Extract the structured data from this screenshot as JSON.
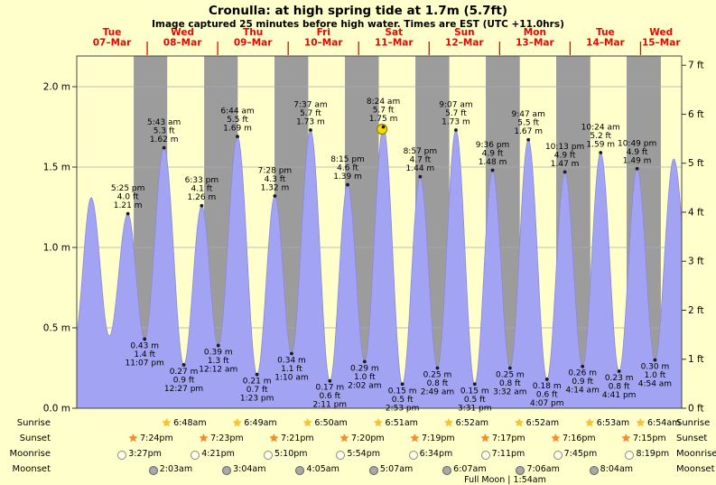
{
  "title": "Cronulla: at high  spring tide at 1.7m (5.7ft)",
  "subtitle": "Image captured 25 minutes before high water. Times are EST (UTC +11.0hrs)",
  "colors": {
    "page_bg": "#ffffcc",
    "day_band": "#ffffcc",
    "night_band": "#9c9c9c",
    "tide_fill": "#a3a3f3",
    "tide_stroke": "#8a8ad8",
    "day_label": "#f20000",
    "grid": "#ababab",
    "marker_fill": "#ffd700",
    "marker_stroke": "#8a8a00"
  },
  "chart_data": {
    "type": "area",
    "unit_left": "m",
    "unit_right": "ft",
    "ylim_m": [
      0,
      2.19
    ],
    "y_ticks_m": [
      "0.0 m",
      "0.5 m",
      "1.0 m",
      "1.5 m",
      "2.0 m"
    ],
    "y_ticks_ft": [
      "0 ft",
      "1 ft",
      "2 ft",
      "3 ft",
      "4 ft",
      "5 ft",
      "6 ft",
      "7 ft"
    ],
    "days": [
      {
        "weekday": "Tue",
        "date": "07–Mar"
      },
      {
        "weekday": "Wed",
        "date": "08–Mar"
      },
      {
        "weekday": "Thu",
        "date": "09–Mar"
      },
      {
        "weekday": "Fri",
        "date": "10–Mar"
      },
      {
        "weekday": "Sat",
        "date": "11–Mar"
      },
      {
        "weekday": "Sun",
        "date": "12–Mar"
      },
      {
        "weekday": "Mon",
        "date": "13–Mar"
      },
      {
        "weekday": "Tue",
        "date": "14–Mar"
      },
      {
        "weekday": "Wed",
        "date": "15–Mar"
      }
    ],
    "tides": [
      {
        "type": "high",
        "day": 0,
        "time": "5:25 pm",
        "ft": "4.0 ft",
        "m": "1.21 m",
        "height_m": 1.21
      },
      {
        "type": "low",
        "day": 0,
        "time": "11:07 pm",
        "ft": "1.4 ft",
        "m": "0.43 m",
        "height_m": 0.43
      },
      {
        "type": "high",
        "day": 1,
        "time": "5:43 am",
        "ft": "5.3 ft",
        "m": "1.62 m",
        "height_m": 1.62
      },
      {
        "type": "low",
        "day": 1,
        "time": "12:27 pm",
        "ft": "0.9 ft",
        "m": "0.27 m",
        "height_m": 0.27
      },
      {
        "type": "high",
        "day": 1,
        "time": "6:33 pm",
        "ft": "4.1 ft",
        "m": "1.26 m",
        "height_m": 1.26
      },
      {
        "type": "low",
        "day": 2,
        "time": "12:12 am",
        "ft": "1.3 ft",
        "m": "0.39 m",
        "height_m": 0.39
      },
      {
        "type": "high",
        "day": 2,
        "time": "6:44 am",
        "ft": "5.5 ft",
        "m": "1.69 m",
        "height_m": 1.69
      },
      {
        "type": "low",
        "day": 2,
        "time": "1:23 pm",
        "ft": "0.7 ft",
        "m": "0.21 m",
        "height_m": 0.21
      },
      {
        "type": "high",
        "day": 2,
        "time": "7:28 pm",
        "ft": "4.3 ft",
        "m": "1.32 m",
        "height_m": 1.32
      },
      {
        "type": "low",
        "day": 3,
        "time": "1:10 am",
        "ft": "1.1 ft",
        "m": "0.34 m",
        "height_m": 0.34
      },
      {
        "type": "high",
        "day": 3,
        "time": "7:37 am",
        "ft": "5.7 ft",
        "m": "1.73 m",
        "height_m": 1.73
      },
      {
        "type": "low",
        "day": 3,
        "time": "2:11 pm",
        "ft": "0.6 ft",
        "m": "0.17 m",
        "height_m": 0.17
      },
      {
        "type": "high",
        "day": 3,
        "time": "8:15 pm",
        "ft": "4.6 ft",
        "m": "1.39 m",
        "height_m": 1.39
      },
      {
        "type": "low",
        "day": 4,
        "time": "2:02 am",
        "ft": "1.0 ft",
        "m": "0.29 m",
        "height_m": 0.29
      },
      {
        "type": "high",
        "day": 4,
        "time": "8:24 am",
        "ft": "5.7 ft",
        "m": "1.75 m",
        "height_m": 1.75,
        "current": true
      },
      {
        "type": "low",
        "day": 4,
        "time": "2:53 pm",
        "ft": "0.5 ft",
        "m": "0.15 m",
        "height_m": 0.15
      },
      {
        "type": "high",
        "day": 4,
        "time": "8:57 pm",
        "ft": "4.7 ft",
        "m": "1.44 m",
        "height_m": 1.44
      },
      {
        "type": "low",
        "day": 5,
        "time": "2:49 am",
        "ft": "0.8 ft",
        "m": "0.25 m",
        "height_m": 0.25
      },
      {
        "type": "high",
        "day": 5,
        "time": "9:07 am",
        "ft": "5.7 ft",
        "m": "1.73 m",
        "height_m": 1.73
      },
      {
        "type": "low",
        "day": 5,
        "time": "3:31 pm",
        "ft": "0.5 ft",
        "m": "0.15 m",
        "height_m": 0.15
      },
      {
        "type": "high",
        "day": 5,
        "time": "9:36 pm",
        "ft": "4.9 ft",
        "m": "1.48 m",
        "height_m": 1.48
      },
      {
        "type": "low",
        "day": 6,
        "time": "3:32 am",
        "ft": "0.8 ft",
        "m": "0.25 m",
        "height_m": 0.25
      },
      {
        "type": "high",
        "day": 6,
        "time": "9:47 am",
        "ft": "5.5 ft",
        "m": "1.67 m",
        "height_m": 1.67
      },
      {
        "type": "low",
        "day": 6,
        "time": "4:07 pm",
        "ft": "0.6 ft",
        "m": "0.18 m",
        "height_m": 0.18
      },
      {
        "type": "high",
        "day": 6,
        "time": "10:13 pm",
        "ft": "4.9 ft",
        "m": "1.47 m",
        "height_m": 1.47
      },
      {
        "type": "low",
        "day": 7,
        "time": "4:14 am",
        "ft": "0.9 ft",
        "m": "0.26 m",
        "height_m": 0.26
      },
      {
        "type": "high",
        "day": 7,
        "time": "10:24 am",
        "ft": "5.2 ft",
        "m": "1.59 m",
        "height_m": 1.59
      },
      {
        "type": "low",
        "day": 7,
        "time": "4:41 pm",
        "ft": "0.8 ft",
        "m": "0.23 m",
        "height_m": 0.23
      },
      {
        "type": "high",
        "day": 7,
        "time": "10:49 pm",
        "ft": "4.9 ft",
        "m": "1.49 m",
        "height_m": 1.49
      },
      {
        "type": "low",
        "day": 8,
        "time": "4:54 am",
        "ft": "1.0 ft",
        "m": "0.30 m",
        "height_m": 0.3
      }
    ],
    "current_marker": {
      "near_high_time": "8:24 am",
      "minutes_before_high_water": 25
    }
  },
  "astro": {
    "rows": [
      {
        "id": "sunrise",
        "label": "Sunrise",
        "icon": "sunrise-star",
        "start_day": 1,
        "times": [
          "6:48am",
          "6:49am",
          "6:50am",
          "6:51am",
          "6:52am",
          "6:52am",
          "6:53am",
          "6:54am"
        ]
      },
      {
        "id": "sunset",
        "label": "Sunset",
        "icon": "sunset-star",
        "start_day": 0,
        "times": [
          "7:24pm",
          "7:23pm",
          "7:21pm",
          "7:20pm",
          "7:19pm",
          "7:17pm",
          "7:16pm",
          "7:15pm"
        ]
      },
      {
        "id": "moonrise",
        "label": "Moonrise",
        "icon": "moonrise-circle",
        "start_day": 0,
        "times": [
          "3:27pm",
          "4:21pm",
          "5:10pm",
          "5:54pm",
          "6:34pm",
          "7:11pm",
          "7:45pm",
          "8:19pm"
        ]
      },
      {
        "id": "moonset",
        "label": "Moonset",
        "icon": "moonset-circle",
        "start_day": 1,
        "times": [
          "2:03am",
          "3:04am",
          "4:05am",
          "5:07am",
          "6:07am",
          "7:06am",
          "8:04am"
        ]
      }
    ],
    "footer": {
      "text": "Full Moon | 1:54am",
      "day": 6,
      "time": "1:54am"
    }
  }
}
